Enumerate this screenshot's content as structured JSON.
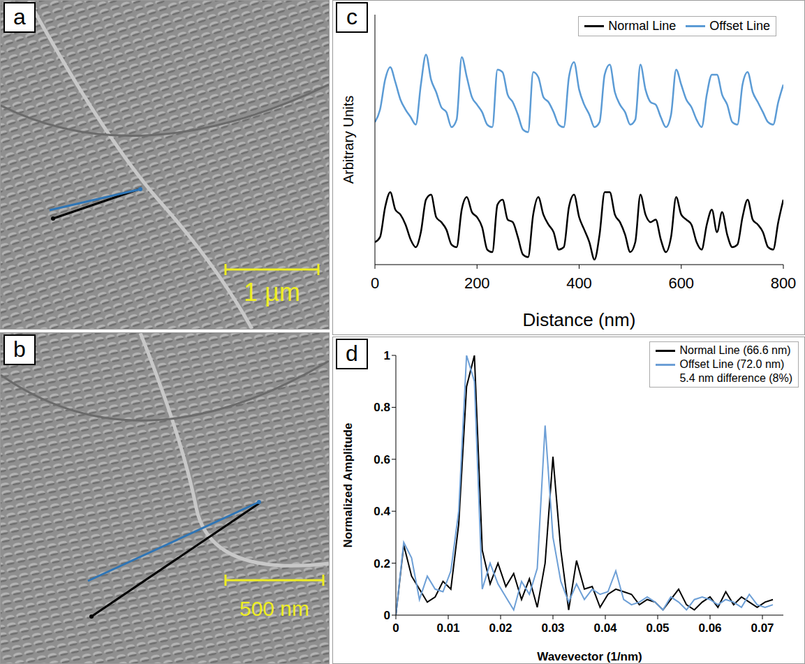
{
  "images": [
    {
      "panel": "a",
      "scale_bar": "1 µm",
      "color": "#eeee22"
    },
    {
      "panel": "b",
      "scale_bar": "500 nm",
      "color": "#eeee22"
    }
  ],
  "chart_data": [
    {
      "panel": "c",
      "type": "line",
      "x_label": "Distance (nm)",
      "y_label": "Arbitrary Units",
      "x": [
        0,
        10,
        20,
        30,
        40,
        50,
        60,
        70,
        80,
        90,
        100,
        110,
        120,
        130,
        140,
        150,
        160,
        170,
        180,
        190,
        200,
        210,
        220,
        230,
        240,
        250,
        260,
        270,
        280,
        290,
        300,
        310,
        320,
        330,
        340,
        350,
        360,
        370,
        380,
        390,
        400,
        410,
        420,
        430,
        440,
        450,
        460,
        470,
        480,
        490,
        500,
        510,
        520,
        530,
        540,
        550,
        560,
        570,
        580,
        590,
        600,
        610,
        620,
        630,
        640,
        650,
        660,
        670,
        680,
        690,
        700,
        710,
        720,
        730,
        740,
        750,
        760,
        770,
        780,
        790,
        800
      ],
      "series": [
        {
          "name": "Normal Line",
          "color": "#000000",
          "values": [
            0.9,
            1.1,
            2.3,
            2.9,
            2.2,
            2.0,
            1.6,
            1.0,
            0.7,
            1.3,
            2.6,
            2.8,
            1.9,
            1.7,
            1.4,
            0.8,
            0.7,
            2.2,
            2.7,
            2.1,
            1.9,
            1.5,
            0.6,
            0.5,
            2.4,
            2.6,
            1.8,
            1.7,
            1.1,
            0.4,
            0.3,
            2.0,
            2.7,
            2.0,
            1.6,
            1.3,
            0.6,
            0.7,
            2.3,
            2.8,
            1.9,
            1.4,
            0.9,
            0.2,
            1.2,
            2.9,
            2.9,
            2.0,
            1.7,
            1.2,
            0.5,
            0.9,
            2.8,
            2.0,
            1.7,
            1.8,
            1.0,
            0.5,
            1.1,
            2.7,
            2.0,
            1.8,
            1.6,
            0.9,
            0.6,
            1.6,
            2.2,
            1.3,
            2.1,
            1.2,
            0.7,
            0.8,
            1.9,
            2.6,
            1.8,
            1.6,
            1.3,
            0.7,
            0.6,
            1.7,
            2.6
          ]
        },
        {
          "name": "Offset Line",
          "color": "#5b9bd5",
          "values": [
            5.7,
            6.2,
            7.4,
            7.9,
            7.3,
            6.6,
            6.2,
            5.9,
            5.6,
            7.2,
            8.4,
            7.4,
            6.9,
            6.3,
            6.1,
            5.5,
            5.8,
            8.3,
            7.5,
            6.7,
            6.4,
            6.1,
            5.6,
            5.5,
            7.8,
            7.7,
            6.8,
            6.5,
            6.0,
            5.4,
            5.3,
            7.7,
            7.5,
            6.7,
            6.5,
            6.1,
            5.6,
            5.5,
            7.5,
            8.1,
            7.0,
            6.4,
            6.0,
            5.5,
            5.7,
            7.6,
            8.0,
            6.9,
            6.4,
            6.1,
            5.6,
            5.8,
            8.0,
            7.0,
            6.5,
            6.4,
            5.9,
            5.5,
            6.0,
            7.8,
            7.2,
            6.6,
            6.3,
            5.8,
            5.5,
            6.8,
            7.6,
            7.6,
            6.8,
            6.4,
            5.7,
            5.6,
            7.2,
            7.7,
            6.9,
            6.5,
            6.1,
            5.7,
            5.6,
            6.5,
            7.2
          ]
        }
      ],
      "xlim": [
        0,
        800
      ],
      "xticks": [
        0,
        200,
        400,
        600,
        800
      ],
      "ylim": [
        0,
        10
      ],
      "tick_labels": "x",
      "grid": false,
      "legend": "upper right"
    },
    {
      "panel": "d",
      "type": "line",
      "x_label": "Wavevector (1/nm)",
      "y_label": "Normalized Amplitude",
      "x": [
        0,
        0.0015,
        0.003,
        0.0045,
        0.006,
        0.0075,
        0.009,
        0.0105,
        0.012,
        0.0135,
        0.015,
        0.0165,
        0.018,
        0.0195,
        0.021,
        0.0225,
        0.024,
        0.0255,
        0.027,
        0.0285,
        0.03,
        0.0315,
        0.033,
        0.0345,
        0.036,
        0.0375,
        0.039,
        0.0405,
        0.042,
        0.0435,
        0.045,
        0.0465,
        0.048,
        0.0495,
        0.051,
        0.0525,
        0.054,
        0.0555,
        0.057,
        0.0585,
        0.06,
        0.0615,
        0.063,
        0.0645,
        0.066,
        0.0675,
        0.069,
        0.0705,
        0.072
      ],
      "series": [
        {
          "name": "Normal Line (66.6 nm)",
          "color": "#000000",
          "values": [
            0,
            0.27,
            0.15,
            0.1,
            0.05,
            0.07,
            0.13,
            0.1,
            0.35,
            0.88,
            1.0,
            0.25,
            0.12,
            0.2,
            0.11,
            0.16,
            0.06,
            0.14,
            0.03,
            0.2,
            0.61,
            0.25,
            0.02,
            0.21,
            0.1,
            0.11,
            0.03,
            0.08,
            0.1,
            0.09,
            0.08,
            0.04,
            0.06,
            0.05,
            0.02,
            0.06,
            0.1,
            0.04,
            0.02,
            0.05,
            0.07,
            0.03,
            0.09,
            0.04,
            0.07,
            0.05,
            0.03,
            0.05,
            0.06
          ]
        },
        {
          "name": "Offset Line (72.0 nm)",
          "color": "#6d9fd6",
          "values": [
            0,
            0.28,
            0.22,
            0.06,
            0.15,
            0.1,
            0.09,
            0.17,
            0.4,
            1.0,
            0.9,
            0.1,
            0.2,
            0.12,
            0.07,
            0.02,
            0.13,
            0.08,
            0.18,
            0.73,
            0.3,
            0.13,
            0.05,
            0.12,
            0.06,
            0.1,
            0.08,
            0.09,
            0.17,
            0.06,
            0.04,
            0.05,
            0.07,
            0.05,
            0.02,
            0.07,
            0.05,
            0.02,
            0.06,
            0.07,
            0.06,
            0.04,
            0.06,
            0.05,
            0.03,
            0.08,
            0.04,
            0.03,
            0.04
          ]
        }
      ],
      "xlim": [
        0,
        0.074
      ],
      "xticks": [
        0,
        0.01,
        0.02,
        0.03,
        0.04,
        0.05,
        0.06,
        0.07
      ],
      "ylim": [
        0,
        1
      ],
      "yticks": [
        0,
        0.2,
        0.4,
        0.6,
        0.8,
        1
      ],
      "annotations": [
        "5.4 nm difference (8%)"
      ],
      "grid": false,
      "legend": "upper right"
    }
  ]
}
